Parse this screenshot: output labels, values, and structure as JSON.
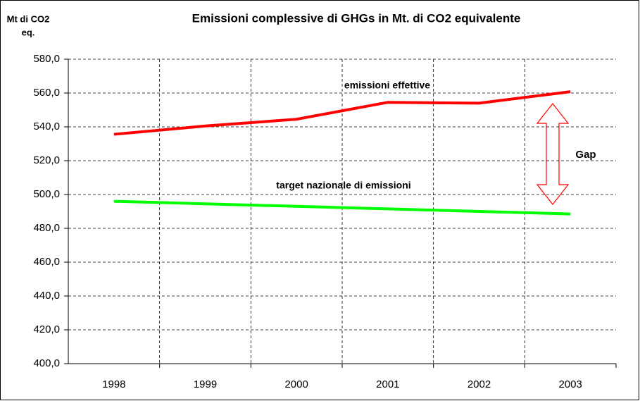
{
  "chart_data": {
    "type": "line",
    "title": "Emissioni complessive di GHGs in Mt. di CO2 equivalente",
    "y_label": [
      "Mt di CO2",
      "eq."
    ],
    "categories": [
      "1998",
      "1999",
      "2000",
      "2001",
      "2002",
      "2003"
    ],
    "series": [
      {
        "name": "emissioni effettive",
        "color": "#ff0000",
        "values": [
          535.6,
          540.5,
          544.5,
          554.5,
          554.0,
          560.8
        ]
      },
      {
        "name": "target nazionale di emissioni",
        "color": "#00ff00",
        "values": [
          496.0,
          494.5,
          493.0,
          491.5,
          490.0,
          488.5
        ]
      }
    ],
    "annotation": "Gap",
    "ylim": [
      400,
      580
    ],
    "yticks": [
      {
        "value": 400,
        "label": "400,0"
      },
      {
        "value": 420,
        "label": "420,0"
      },
      {
        "value": 440,
        "label": "440,0"
      },
      {
        "value": 460,
        "label": "460,0"
      },
      {
        "value": 480,
        "label": "480,0"
      },
      {
        "value": 500,
        "label": "500,0"
      },
      {
        "value": 520,
        "label": "520,0"
      },
      {
        "value": 540,
        "label": "540,0"
      },
      {
        "value": 560,
        "label": "560,0"
      },
      {
        "value": 580,
        "label": "580,0"
      }
    ],
    "grid": true
  }
}
